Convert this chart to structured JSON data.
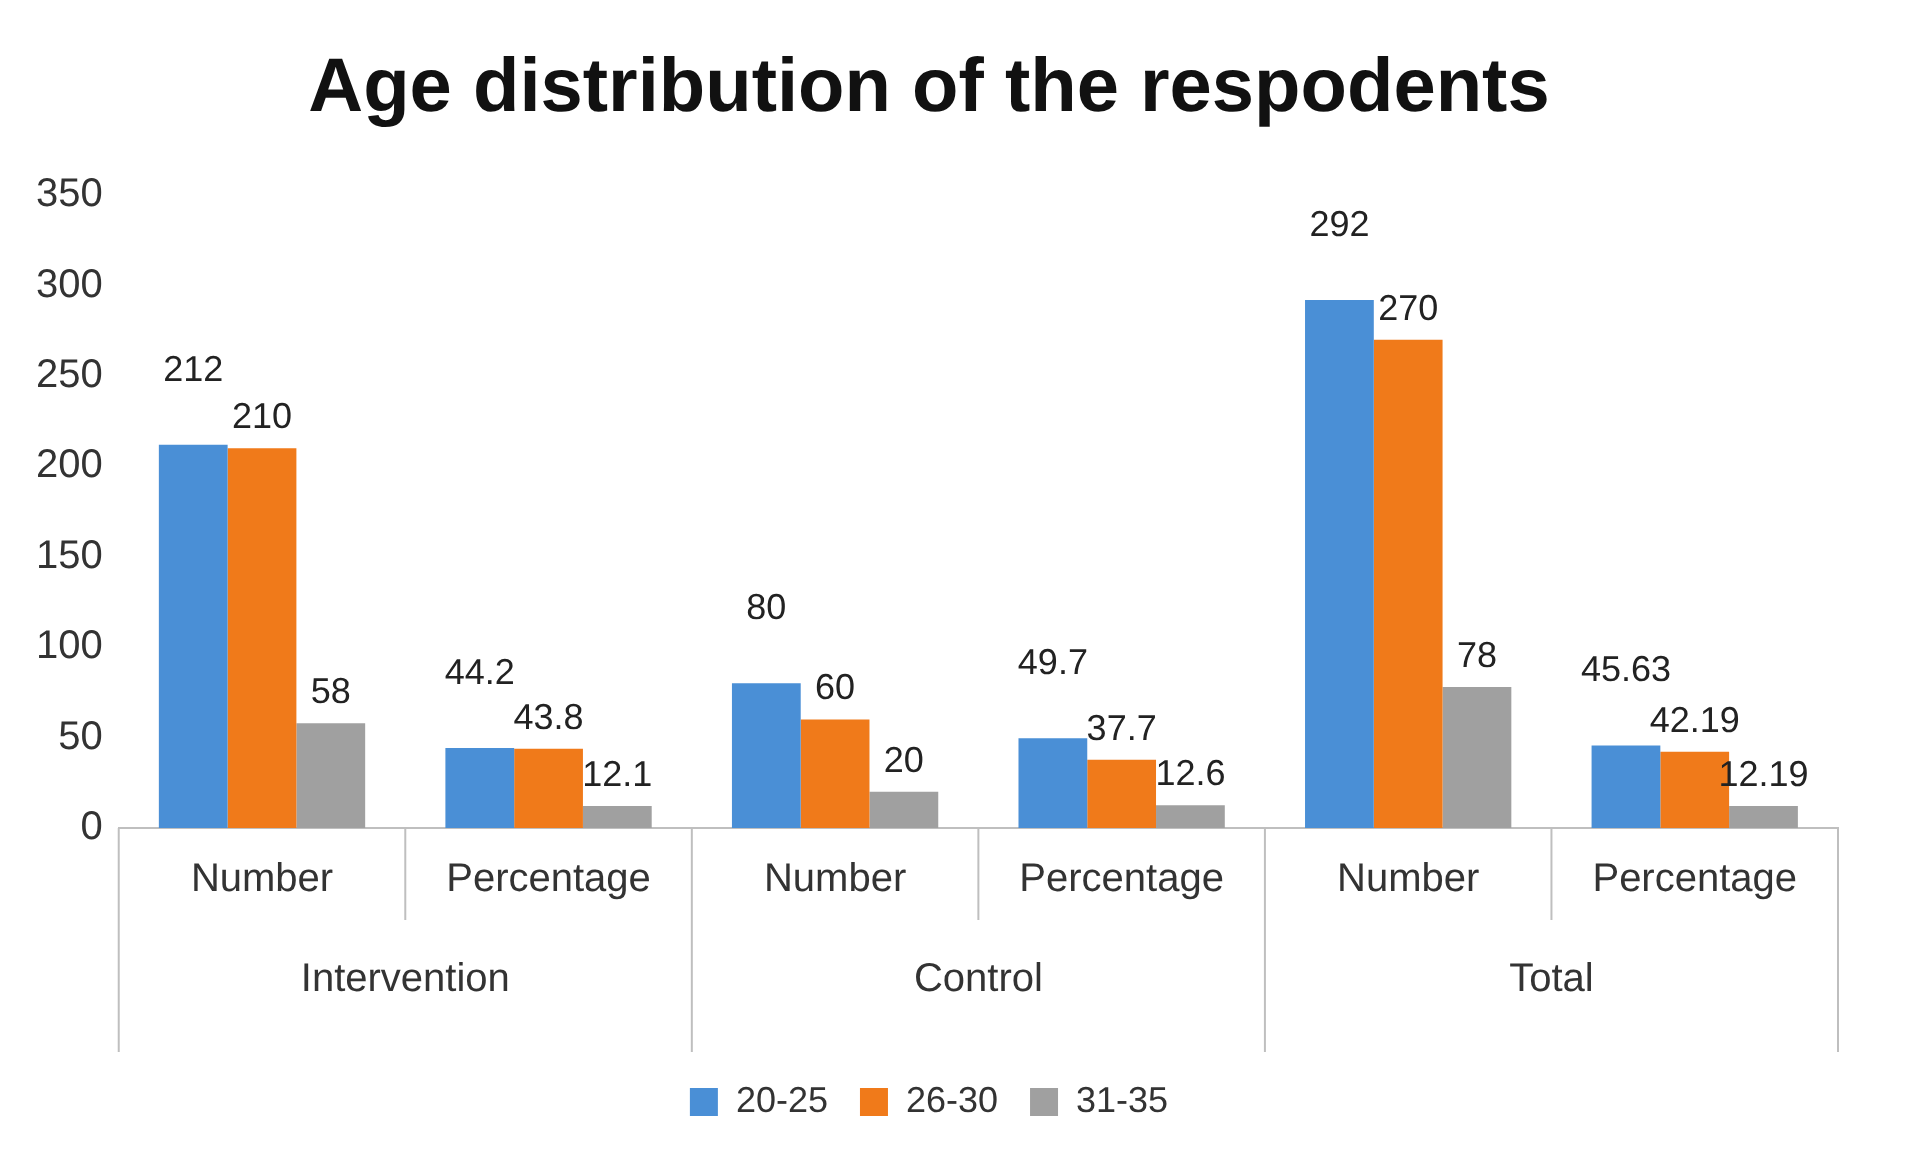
{
  "chart_data": {
    "type": "bar",
    "title": "Age distribution of the respodents",
    "categories": [
      "Number",
      "Percentage",
      "Number",
      "Percentage",
      "Number",
      "Percentage"
    ],
    "annotations": [
      "Intervention",
      "Control",
      "Total"
    ],
    "series": [
      {
        "name": "20-25",
        "color": "#4a8fd6",
        "values": [
          212,
          44.2,
          80,
          49.7,
          292,
          45.63
        ]
      },
      {
        "name": "26-30",
        "color": "#f07a1a",
        "values": [
          210,
          43.8,
          60,
          37.7,
          270,
          42.19
        ]
      },
      {
        "name": "31-35",
        "color": "#a0a0a0",
        "values": [
          58,
          12.1,
          20,
          12.6,
          78,
          12.19
        ]
      }
    ],
    "ylim": [
      0,
      350
    ],
    "yticks": [
      0,
      50,
      100,
      150,
      200,
      250,
      300,
      350
    ],
    "grid": false,
    "legend": "bottom",
    "data_labels": true
  }
}
